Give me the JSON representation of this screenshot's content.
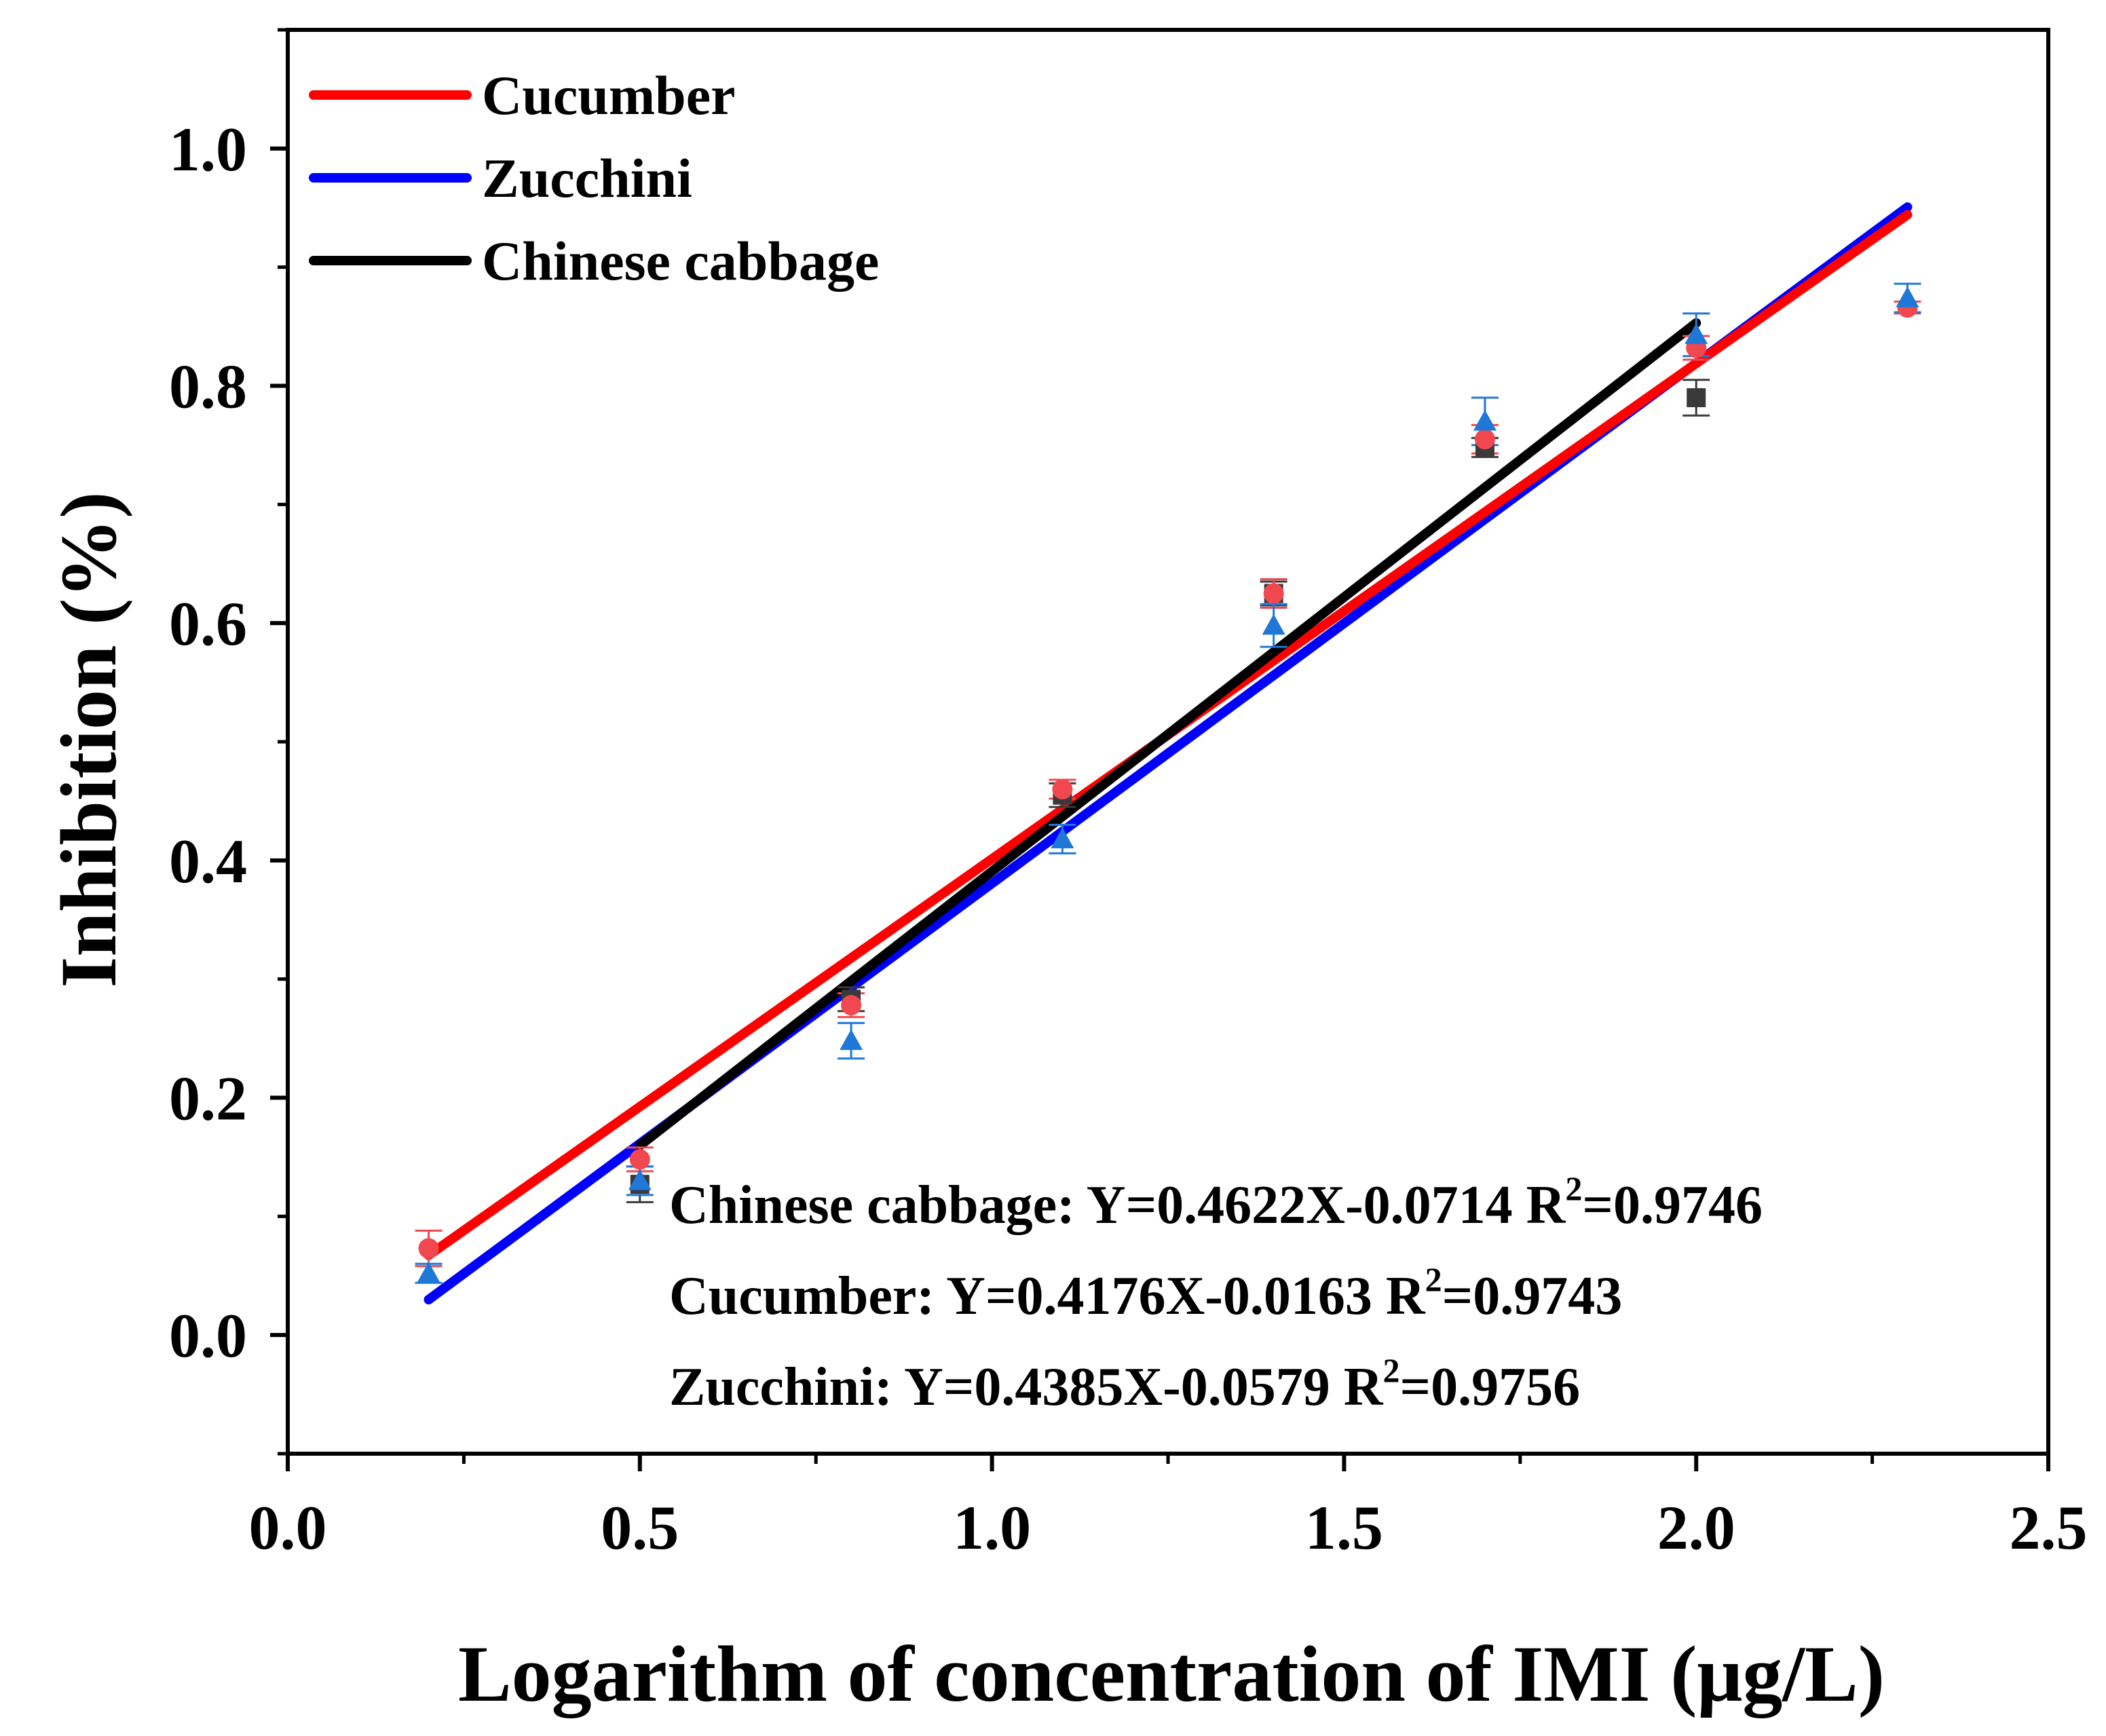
{
  "chart_data": {
    "type": "scatter",
    "title": "",
    "xlabel": "Logarithm of concentration of IMI (μg/L)",
    "ylabel": "Inhibition (%)",
    "xlim": [
      0.0,
      2.5
    ],
    "ylim": [
      -0.1,
      1.1
    ],
    "x_ticks": [
      "0.0",
      "0.5",
      "1.0",
      "1.5",
      "2.0",
      "2.5"
    ],
    "x_tick_values": [
      0.0,
      0.5,
      1.0,
      1.5,
      2.0,
      2.5
    ],
    "y_ticks": [
      "0.0",
      "0.2",
      "0.4",
      "0.6",
      "0.8",
      "1.0"
    ],
    "y_tick_values": [
      0.0,
      0.2,
      0.4,
      0.6,
      0.8,
      1.0
    ],
    "grid": false,
    "legend_position": "top-left",
    "series": [
      {
        "name": "Cucumber",
        "color": "#ff0000",
        "marker_color": "#f0484e",
        "marker": "circle",
        "x": [
          0.2,
          0.5,
          0.8,
          1.1,
          1.4,
          1.7,
          2.0,
          2.3
        ],
        "y": [
          0.073,
          0.148,
          0.278,
          0.46,
          0.625,
          0.755,
          0.832,
          0.866
        ],
        "err": [
          0.015,
          0.01,
          0.01,
          0.008,
          0.012,
          0.012,
          0.01,
          0.005
        ],
        "fit": {
          "slope": 0.4176,
          "intercept": -0.0163,
          "x_range": [
            0.2,
            2.3
          ]
        }
      },
      {
        "name": "Zucchini",
        "color": "#0000ff",
        "marker_color": "#1f78d8",
        "marker": "triangle",
        "x": [
          0.2,
          0.5,
          0.8,
          1.1,
          1.4,
          1.7,
          2.0,
          2.3
        ],
        "y": [
          0.052,
          0.13,
          0.248,
          0.418,
          0.598,
          0.77,
          0.843,
          0.874
        ],
        "err": [
          0.008,
          0.012,
          0.015,
          0.012,
          0.018,
          0.02,
          0.018,
          0.012
        ],
        "fit": {
          "slope": 0.4385,
          "intercept": -0.0579,
          "x_range": [
            0.2,
            2.3
          ]
        }
      },
      {
        "name": "Chinese cabbage",
        "color": "#000000",
        "marker_color": "#3a3a3a",
        "marker": "square",
        "x": [
          0.5,
          0.8,
          1.1,
          1.4,
          1.7,
          2.0
        ],
        "y": [
          0.127,
          0.283,
          0.455,
          0.625,
          0.748,
          0.79
        ],
        "err": [
          0.015,
          0.01,
          0.01,
          0.01,
          0.008,
          0.015
        ],
        "fit": {
          "slope": 0.4622,
          "intercept": -0.0714,
          "x_range": [
            0.5,
            2.0
          ]
        }
      }
    ],
    "annotations": [
      {
        "prefix": "Chinese cabbage: Y=0.4622X-0.0714 R",
        "sup": "2",
        "suffix": "=0.9746"
      },
      {
        "prefix": "Cucumber: Y=0.4176X-0.0163 R",
        "sup": "2",
        "suffix": "=0.9743"
      },
      {
        "prefix": "Zucchini: Y=0.4385X-0.0579 R",
        "sup": "2",
        "suffix": "=0.9756"
      }
    ]
  }
}
